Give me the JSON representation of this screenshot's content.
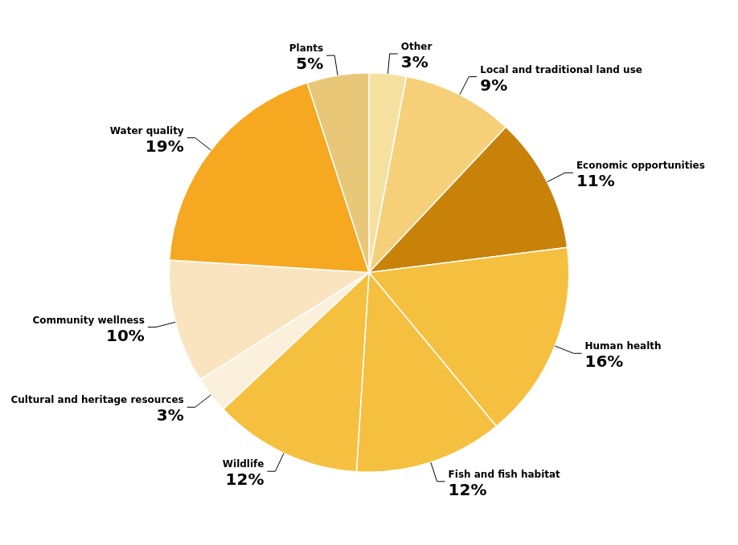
{
  "chart_data": {
    "type": "pie",
    "categories": [
      "Other",
      "Local and traditional land use",
      "Economic opportunities",
      "Human health",
      "Fish and fish habitat",
      "Wildlife",
      "Cultural and heritage resources",
      "Community wellness",
      "Water quality",
      "Plants"
    ],
    "values": [
      3,
      9,
      11,
      16,
      12,
      12,
      3,
      10,
      19,
      5
    ],
    "value_labels": [
      "3%",
      "9%",
      "11%",
      "16%",
      "12%",
      "12%",
      "3%",
      "10%",
      "19%",
      "5%"
    ],
    "colors": [
      "#F5E0A0",
      "#F5D078",
      "#C8820A",
      "#F5C040",
      "#F5C040",
      "#F5C040",
      "#FAF0DC",
      "#FAE4C0",
      "#F5A820",
      "#E8C878"
    ],
    "data_labels": true
  }
}
